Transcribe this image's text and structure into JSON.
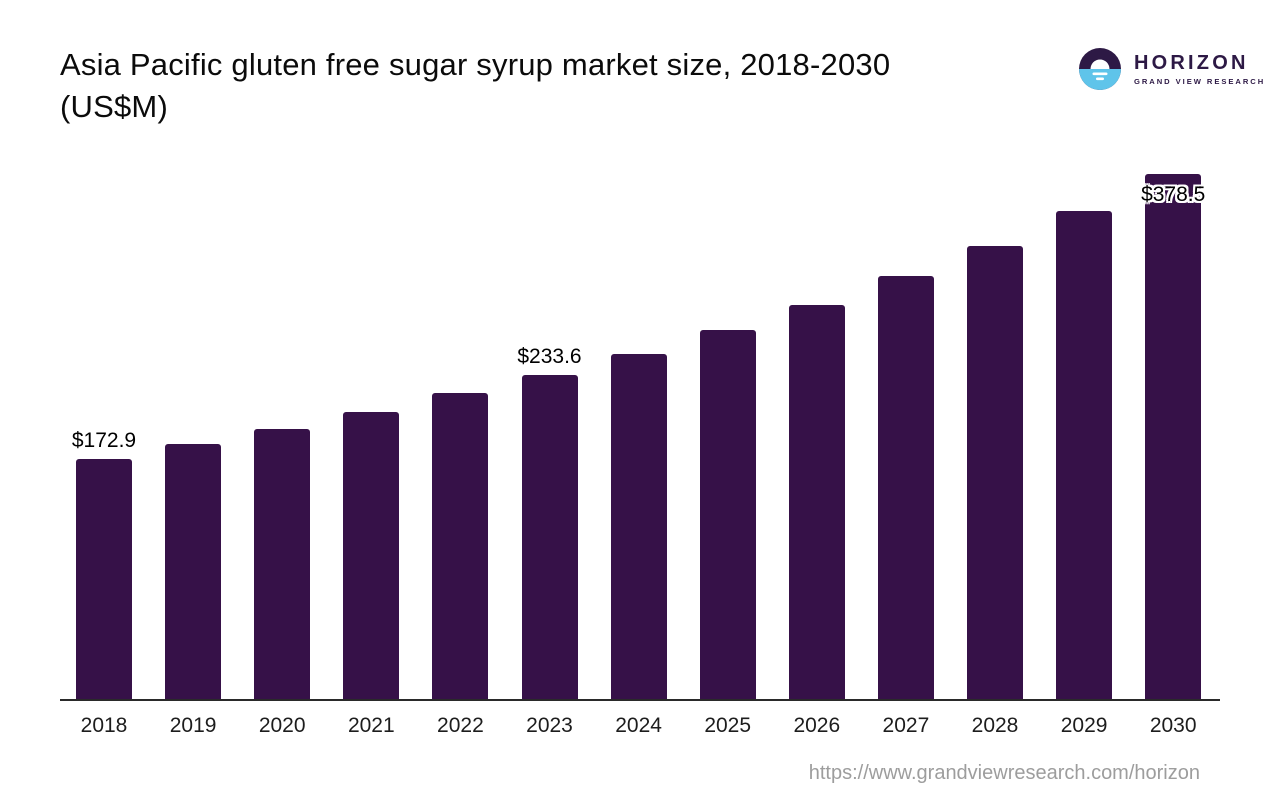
{
  "header": {
    "title_line1": "Asia Pacific gluten free sugar syrup market size, 2018-2030",
    "title_line2": "(US$M)"
  },
  "logo": {
    "name": "HORIZON",
    "subtitle": "GRAND VIEW RESEARCH",
    "icon": "horizon-sun-over-water-icon",
    "colors": {
      "purple": "#2d1945",
      "blue": "#5fc4ea",
      "white": "#ffffff"
    }
  },
  "chart_data": {
    "type": "bar",
    "title": "Asia Pacific gluten free sugar syrup market size, 2018-2030 (US$M)",
    "unit": "US$M",
    "categories": [
      "2018",
      "2019",
      "2020",
      "2021",
      "2022",
      "2023",
      "2024",
      "2025",
      "2026",
      "2027",
      "2028",
      "2029",
      "2030"
    ],
    "values": [
      172.9,
      184.2,
      194.5,
      207.2,
      220.3,
      233.6,
      249.0,
      266.3,
      284.3,
      305.0,
      326.7,
      351.8,
      378.5
    ],
    "labeled_points": [
      {
        "year": "2018",
        "label": "$172.9",
        "position": "above"
      },
      {
        "year": "2023",
        "label": "$233.6",
        "position": "above"
      },
      {
        "year": "2030",
        "label": "$378.5",
        "position": "overlap"
      }
    ],
    "bar_color": "#361148",
    "xlabel": "",
    "ylabel": "",
    "ylim": [
      0,
      390
    ],
    "grid": false,
    "legend": false
  },
  "footer": {
    "source_url": "https://www.grandviewresearch.com/horizon"
  }
}
